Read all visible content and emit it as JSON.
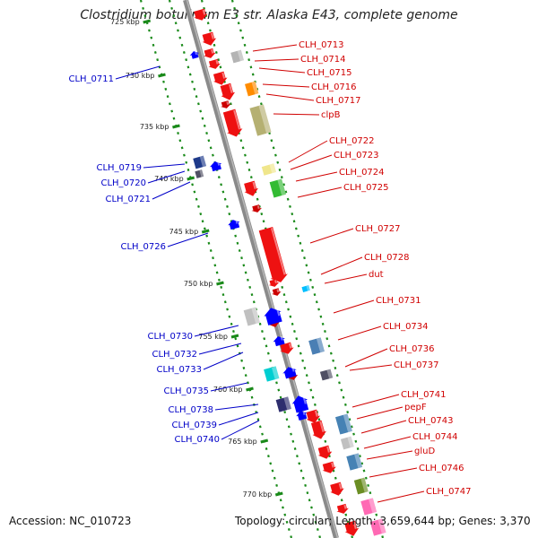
{
  "title": "Clostridium botulinum E3 str. Alaska E43, complete genome",
  "accession": "Accession: NC_010723",
  "footer": "Topology: circular; Length: 3,659,644 bp; Genes: 3,370",
  "colors": {
    "forward": "#ff0000",
    "reverse": "#0000ff",
    "forward_label": "#d00000",
    "reverse_label": "#0000c8",
    "backbone": "#8a8a8a",
    "tick": "#1a8a1a"
  },
  "ticks": [
    {
      "label": "725 kbp"
    },
    {
      "label": "730 kbp"
    },
    {
      "label": "735 kbp"
    },
    {
      "label": "740 kbp"
    },
    {
      "label": "745 kbp"
    },
    {
      "label": "750 kbp"
    },
    {
      "label": "755 kbp"
    },
    {
      "label": "760 kbp"
    },
    {
      "label": "765 kbp"
    },
    {
      "label": "770 kbp"
    }
  ],
  "forward_labels": [
    "CLH_0713",
    "CLH_0714",
    "CLH_0715",
    "CLH_0716",
    "CLH_0717",
    "clpB",
    "CLH_0722",
    "CLH_0723",
    "CLH_0724",
    "CLH_0725",
    "CLH_0727",
    "CLH_0728",
    "dut",
    "CLH_0731",
    "CLH_0734",
    "CLH_0736",
    "CLH_0737",
    "CLH_0741",
    "pepF",
    "CLH_0743",
    "CLH_0744",
    "gluD",
    "CLH_0746",
    "CLH_0747"
  ],
  "reverse_labels": [
    "CLH_0711",
    "CLH_0719",
    "CLH_0720",
    "CLH_0721",
    "CLH_0726",
    "CLH_0730",
    "CLH_0732",
    "CLH_0733",
    "CLH_0735",
    "CLH_0738",
    "CLH_0739",
    "CLH_0740"
  ]
}
